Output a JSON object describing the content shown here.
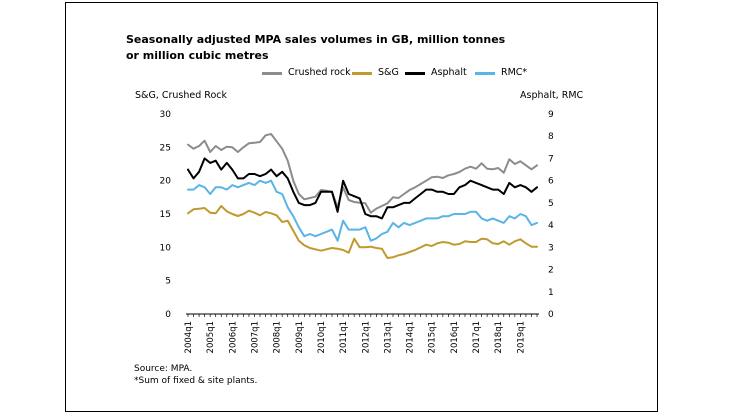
{
  "title": "Seasonally adjusted MPA sales volumes in GB, million tonnes or million cubic metres",
  "source": "Source: MPA.",
  "footnote": "*Sum of fixed & site plants.",
  "chart_data": {
    "type": "line",
    "title": "Seasonally adjusted MPA sales volumes in GB, million tonnes or million cubic metres",
    "ylabel_left": "S&G, Crushed Rock",
    "ylabel_right": "Asphalt, RMC",
    "ylim_left": [
      0,
      30
    ],
    "ylim_right": [
      0,
      9
    ],
    "yticks_left": [
      "0",
      "5",
      "10",
      "15",
      "20",
      "25",
      "30"
    ],
    "yticks_right": [
      "0",
      "1",
      "2",
      "3",
      "4",
      "5",
      "6",
      "7",
      "8",
      "9"
    ],
    "xtick_labels": [
      "2004q1",
      "2005q1",
      "2006q1",
      "2007q1",
      "2008q1",
      "2009q1",
      "2010q1",
      "2011q1",
      "2012q1",
      "2013q1",
      "2014q1",
      "2015q1",
      "2016q1",
      "2017q1",
      "2018q1",
      "2019q1"
    ],
    "x_start": "2004q1",
    "n_quarters": 64,
    "series": [
      {
        "name": "Crushed rock",
        "axis": "left",
        "color": "#8c8c8c",
        "values": [
          25.4,
          24.8,
          25.2,
          26.0,
          24.3,
          25.2,
          24.6,
          25.1,
          25.0,
          24.3,
          25.0,
          25.6,
          25.7,
          25.8,
          26.8,
          27.0,
          25.9,
          24.8,
          23.0,
          20.0,
          18.0,
          17.2,
          17.4,
          17.6,
          18.6,
          18.5,
          18.3,
          16.0,
          19.0,
          17.1,
          16.8,
          16.7,
          16.6,
          15.2,
          15.8,
          16.2,
          16.6,
          17.5,
          17.4,
          18.0,
          18.6,
          19.0,
          19.5,
          20.0,
          20.5,
          20.6,
          20.4,
          20.8,
          21.0,
          21.3,
          21.8,
          22.1,
          21.8,
          22.6,
          21.8,
          21.7,
          21.9,
          21.2,
          23.2,
          22.5,
          22.9,
          22.3,
          21.7,
          22.3
        ]
      },
      {
        "name": "S&G",
        "axis": "left",
        "color": "#c09a2e",
        "values": [
          15.1,
          15.7,
          15.8,
          15.9,
          15.2,
          15.1,
          16.2,
          15.4,
          15.0,
          14.7,
          15.0,
          15.5,
          15.2,
          14.8,
          15.3,
          15.1,
          14.8,
          13.8,
          14.0,
          12.5,
          11.0,
          10.3,
          9.9,
          9.7,
          9.5,
          9.7,
          9.9,
          9.8,
          9.6,
          9.2,
          11.3,
          10.0,
          10.0,
          10.1,
          9.9,
          9.8,
          8.4,
          8.5,
          8.8,
          9.0,
          9.3,
          9.6,
          10.0,
          10.4,
          10.2,
          10.6,
          10.8,
          10.7,
          10.4,
          10.5,
          10.9,
          10.8,
          10.8,
          11.3,
          11.2,
          10.6,
          10.5,
          10.9,
          10.4,
          10.9,
          11.2,
          10.6,
          10.1,
          10.1
        ]
      },
      {
        "name": "Asphalt",
        "axis": "right",
        "color": "#000000",
        "values": [
          6.5,
          6.1,
          6.4,
          7.0,
          6.8,
          6.9,
          6.5,
          6.8,
          6.5,
          6.1,
          6.1,
          6.3,
          6.3,
          6.2,
          6.3,
          6.5,
          6.2,
          6.4,
          6.1,
          5.5,
          5.0,
          4.9,
          4.9,
          5.0,
          5.5,
          5.5,
          5.5,
          4.6,
          6.0,
          5.4,
          5.3,
          5.2,
          4.5,
          4.4,
          4.4,
          4.3,
          4.8,
          4.8,
          4.9,
          5.0,
          5.0,
          5.2,
          5.4,
          5.6,
          5.6,
          5.5,
          5.5,
          5.4,
          5.4,
          5.7,
          5.8,
          6.0,
          5.9,
          5.8,
          5.7,
          5.6,
          5.6,
          5.4,
          5.9,
          5.7,
          5.8,
          5.7,
          5.5,
          5.7
        ]
      },
      {
        "name": "RMC*",
        "axis": "right",
        "color": "#5ab4e6",
        "values": [
          5.6,
          5.6,
          5.8,
          5.7,
          5.4,
          5.7,
          5.7,
          5.6,
          5.8,
          5.7,
          5.8,
          5.9,
          5.8,
          6.0,
          5.9,
          6.0,
          5.5,
          5.4,
          4.8,
          4.4,
          3.9,
          3.5,
          3.6,
          3.5,
          3.6,
          3.7,
          3.8,
          3.3,
          4.2,
          3.8,
          3.8,
          3.8,
          3.9,
          3.3,
          3.4,
          3.6,
          3.7,
          4.1,
          3.9,
          4.1,
          4.0,
          4.1,
          4.2,
          4.3,
          4.3,
          4.3,
          4.4,
          4.4,
          4.5,
          4.5,
          4.5,
          4.6,
          4.6,
          4.3,
          4.2,
          4.3,
          4.2,
          4.1,
          4.4,
          4.3,
          4.5,
          4.4,
          4.0,
          4.1
        ]
      }
    ]
  }
}
